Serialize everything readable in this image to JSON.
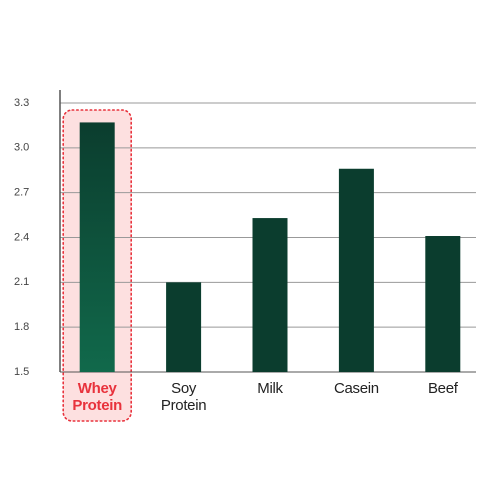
{
  "chart_data": {
    "type": "bar",
    "categories": [
      "Whey Protein",
      "Soy Protein",
      "Milk",
      "Casein",
      "Beef"
    ],
    "values": [
      3.17,
      2.1,
      2.53,
      2.86,
      2.41
    ],
    "color": "#0b3d2e",
    "ylim": [
      1.5,
      3.3
    ],
    "yticks": [
      1.5,
      1.8,
      2.1,
      2.4,
      2.7,
      {
        "value": 3,
        "label": "3.0"
      },
      3.3
    ],
    "grid": true,
    "highlight": {
      "index": 0,
      "color": "#e8323c",
      "fill": "#fde0e0",
      "bar_color": "#11694b"
    }
  }
}
